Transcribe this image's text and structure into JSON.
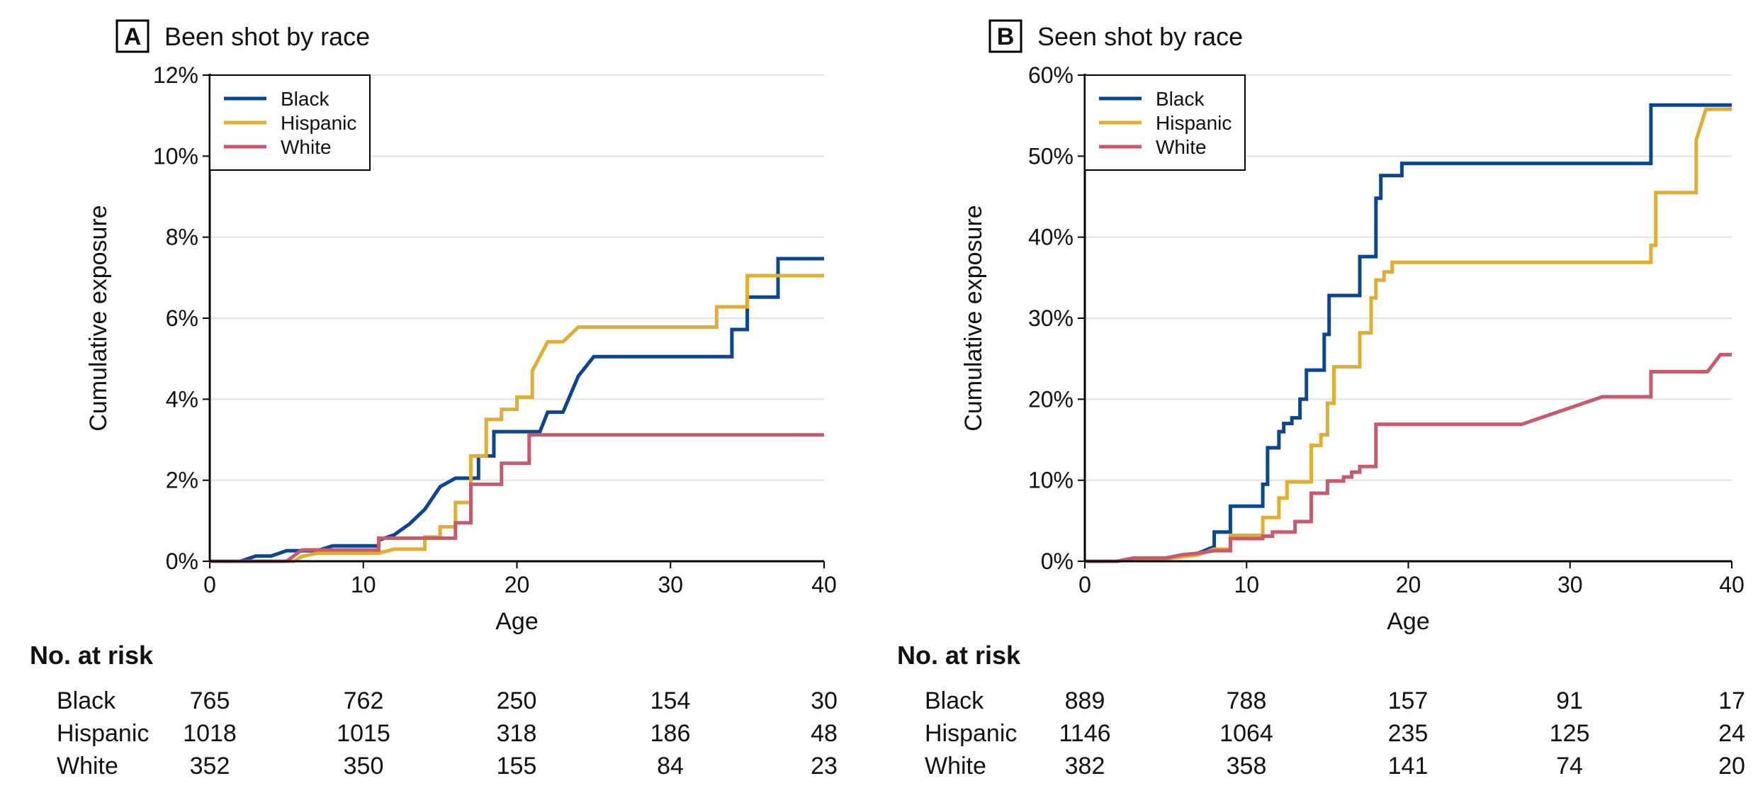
{
  "risk_header": "No. at risk",
  "chart_data": [
    {
      "panel": "A",
      "title": "Been shot by race",
      "type": "line",
      "step": true,
      "xlabel": "Age",
      "ylabel": "Cumulative exposure",
      "xlim": [
        0,
        40
      ],
      "ylim": [
        0,
        12
      ],
      "xticks": [
        "0",
        "10",
        "20",
        "30",
        "40"
      ],
      "yticks": [
        "0%",
        "2%",
        "4%",
        "6%",
        "8%",
        "10%",
        "12%"
      ],
      "grid": "horizontal",
      "legend_position": "top-left",
      "series": [
        {
          "name": "Black",
          "color": "#0a4691",
          "points": [
            [
              0,
              0
            ],
            [
              2,
              0
            ],
            [
              3,
              0.13
            ],
            [
              4,
              0.13
            ],
            [
              5,
              0.26
            ],
            [
              7,
              0.26
            ],
            [
              8,
              0.38
            ],
            [
              11,
              0.38
            ],
            [
              11,
              0.52
            ],
            [
              12,
              0.65
            ],
            [
              13,
              0.92
            ],
            [
              14,
              1.28
            ],
            [
              15,
              1.84
            ],
            [
              16,
              2.05
            ],
            [
              17.5,
              2.05
            ],
            [
              17.5,
              2.6
            ],
            [
              18.5,
              2.6
            ],
            [
              18.5,
              3.2
            ],
            [
              21.5,
              3.2
            ],
            [
              22,
              3.68
            ],
            [
              23,
              3.68
            ],
            [
              24,
              4.57
            ],
            [
              25,
              5.05
            ],
            [
              34,
              5.05
            ],
            [
              34,
              5.72
            ],
            [
              35,
              5.72
            ],
            [
              35,
              6.52
            ],
            [
              37,
              6.52
            ],
            [
              37,
              7.47
            ],
            [
              40,
              7.47
            ]
          ]
        },
        {
          "name": "Hispanic",
          "color": "#e3ad32",
          "points": [
            [
              0,
              0
            ],
            [
              5.5,
              0
            ],
            [
              6,
              0.12
            ],
            [
              7,
              0.2
            ],
            [
              10,
              0.2
            ],
            [
              10,
              0.2
            ],
            [
              11,
              0.2
            ],
            [
              11,
              0.2
            ],
            [
              12,
              0.3
            ],
            [
              14,
              0.3
            ],
            [
              14,
              0.6
            ],
            [
              15,
              0.6
            ],
            [
              15,
              0.85
            ],
            [
              16,
              0.85
            ],
            [
              16,
              1.45
            ],
            [
              17,
              1.45
            ],
            [
              17,
              2.6
            ],
            [
              18,
              2.6
            ],
            [
              18,
              3.5
            ],
            [
              19,
              3.5
            ],
            [
              19,
              3.75
            ],
            [
              20,
              3.75
            ],
            [
              20,
              4.05
            ],
            [
              21,
              4.05
            ],
            [
              21,
              4.7
            ],
            [
              22,
              5.42
            ],
            [
              23,
              5.42
            ],
            [
              24,
              5.78
            ],
            [
              33,
              5.78
            ],
            [
              33,
              6.28
            ],
            [
              35,
              6.28
            ],
            [
              35,
              7.05
            ],
            [
              40,
              7.05
            ]
          ]
        },
        {
          "name": "White",
          "color": "#c85a6e",
          "points": [
            [
              0,
              0
            ],
            [
              5,
              0
            ],
            [
              6,
              0.28
            ],
            [
              8,
              0.28
            ],
            [
              11,
              0.28
            ],
            [
              11,
              0.57
            ],
            [
              16,
              0.57
            ],
            [
              16,
              0.95
            ],
            [
              17,
              0.95
            ],
            [
              17,
              1.9
            ],
            [
              19,
              1.9
            ],
            [
              19,
              2.42
            ],
            [
              20.8,
              2.42
            ],
            [
              20.8,
              3.12
            ],
            [
              40,
              3.12
            ]
          ]
        }
      ],
      "risk_table": {
        "rows": [
          {
            "label": "Black",
            "values": [
              "765",
              "762",
              "250",
              "154",
              "30"
            ]
          },
          {
            "label": "Hispanic",
            "values": [
              "1018",
              "1015",
              "318",
              "186",
              "48"
            ]
          },
          {
            "label": "White",
            "values": [
              "352",
              "350",
              "155",
              "84",
              "23"
            ]
          }
        ]
      }
    },
    {
      "panel": "B",
      "title": "Seen shot by race",
      "type": "line",
      "step": true,
      "xlabel": "Age",
      "ylabel": "Cumulative exposure",
      "xlim": [
        0,
        40
      ],
      "ylim": [
        0,
        60
      ],
      "xticks": [
        "0",
        "10",
        "20",
        "30",
        "40"
      ],
      "yticks": [
        "0%",
        "10%",
        "20%",
        "30%",
        "40%",
        "50%",
        "60%"
      ],
      "grid": "horizontal",
      "legend_position": "top-left",
      "series": [
        {
          "name": "Black",
          "color": "#0a4691",
          "points": [
            [
              0,
              0
            ],
            [
              2,
              0
            ],
            [
              3,
              0.3
            ],
            [
              5,
              0.4
            ],
            [
              7,
              1.0
            ],
            [
              8,
              1.8
            ],
            [
              8,
              3.6
            ],
            [
              9,
              3.6
            ],
            [
              9,
              6.8
            ],
            [
              11,
              6.8
            ],
            [
              11,
              9.5
            ],
            [
              11.3,
              9.5
            ],
            [
              11.3,
              14
            ],
            [
              12,
              14
            ],
            [
              12,
              16
            ],
            [
              12.3,
              16
            ],
            [
              12.3,
              17
            ],
            [
              12.8,
              17
            ],
            [
              12.8,
              17.7
            ],
            [
              13.3,
              17.7
            ],
            [
              13.3,
              20
            ],
            [
              13.7,
              20
            ],
            [
              13.7,
              23.6
            ],
            [
              14.8,
              23.6
            ],
            [
              14.8,
              28
            ],
            [
              15.1,
              28
            ],
            [
              15.1,
              32.8
            ],
            [
              17,
              32.8
            ],
            [
              17,
              37.6
            ],
            [
              18,
              37.6
            ],
            [
              18,
              44.8
            ],
            [
              18.3,
              44.8
            ],
            [
              18.3,
              47.6
            ],
            [
              19.6,
              47.6
            ],
            [
              19.6,
              49.1
            ],
            [
              35,
              49.1
            ],
            [
              35,
              56.3
            ],
            [
              40,
              56.3
            ]
          ]
        },
        {
          "name": "Hispanic",
          "color": "#e3ad32",
          "points": [
            [
              0,
              0
            ],
            [
              2,
              0
            ],
            [
              3,
              0.3
            ],
            [
              5,
              0.3
            ],
            [
              7,
              0.8
            ],
            [
              8,
              1.5
            ],
            [
              9,
              1.5
            ],
            [
              9,
              3.2
            ],
            [
              11,
              3.2
            ],
            [
              11,
              5.4
            ],
            [
              12,
              5.4
            ],
            [
              12,
              7.8
            ],
            [
              12.5,
              7.8
            ],
            [
              12.5,
              9.8
            ],
            [
              14,
              9.8
            ],
            [
              14,
              14.3
            ],
            [
              14.6,
              14.3
            ],
            [
              14.6,
              15.6
            ],
            [
              15,
              15.6
            ],
            [
              15,
              19.5
            ],
            [
              15.4,
              19.5
            ],
            [
              15.4,
              24
            ],
            [
              17,
              24
            ],
            [
              17,
              28.2
            ],
            [
              17.7,
              28.2
            ],
            [
              17.7,
              32.5
            ],
            [
              18,
              32.5
            ],
            [
              18,
              34.7
            ],
            [
              18.5,
              34.7
            ],
            [
              18.5,
              35.7
            ],
            [
              19,
              35.7
            ],
            [
              19,
              36.9
            ],
            [
              35,
              36.9
            ],
            [
              35,
              39
            ],
            [
              35.3,
              39
            ],
            [
              35.3,
              45.5
            ],
            [
              37.8,
              45.5
            ],
            [
              37.8,
              52
            ],
            [
              38.4,
              55.8
            ],
            [
              40,
              55.8
            ]
          ]
        },
        {
          "name": "White",
          "color": "#c85a6e",
          "points": [
            [
              0,
              0
            ],
            [
              2,
              0
            ],
            [
              3,
              0.4
            ],
            [
              5,
              0.4
            ],
            [
              6,
              0.8
            ],
            [
              7,
              1.0
            ],
            [
              8,
              1.3
            ],
            [
              9,
              1.3
            ],
            [
              9,
              2.8
            ],
            [
              11,
              2.8
            ],
            [
              11,
              3.1
            ],
            [
              11.6,
              3.1
            ],
            [
              11.6,
              3.6
            ],
            [
              13,
              3.6
            ],
            [
              13,
              4.9
            ],
            [
              14,
              4.9
            ],
            [
              14,
              8.4
            ],
            [
              15,
              8.4
            ],
            [
              15,
              9.9
            ],
            [
              16,
              9.9
            ],
            [
              16,
              10.4
            ],
            [
              16.5,
              10.4
            ],
            [
              16.5,
              11
            ],
            [
              17,
              11
            ],
            [
              17,
              11.7
            ],
            [
              18,
              11.7
            ],
            [
              18,
              16.9
            ],
            [
              27,
              16.9
            ],
            [
              32,
              20.3
            ],
            [
              35,
              20.3
            ],
            [
              35,
              23.4
            ],
            [
              38.5,
              23.4
            ],
            [
              39.3,
              25.5
            ],
            [
              40,
              25.5
            ]
          ]
        }
      ],
      "risk_table": {
        "rows": [
          {
            "label": "Black",
            "values": [
              "889",
              "788",
              "157",
              "91",
              "17"
            ]
          },
          {
            "label": "Hispanic",
            "values": [
              "1146",
              "1064",
              "235",
              "125",
              "24"
            ]
          },
          {
            "label": "White",
            "values": [
              "382",
              "358",
              "141",
              "74",
              "20"
            ]
          }
        ]
      }
    }
  ]
}
